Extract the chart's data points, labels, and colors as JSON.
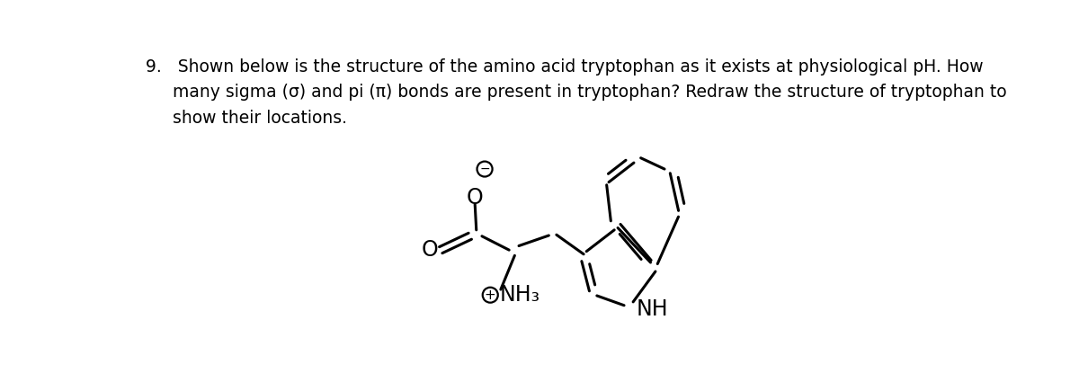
{
  "bg_color": "#ffffff",
  "line_color": "#000000",
  "line_width": 2.2,
  "font_size_text": 13.5,
  "font_family": "Arial",
  "text_line1": "9.   Shown below is the structure of the amino acid tryptophan as it exists at physiological pH. How",
  "text_line2": "     many sigma (σ) and pi (π) bonds are present in tryptophan? Redraw the structure of tryptophan to",
  "text_line3": "     show their locations.",
  "mol_scale": 1.0
}
